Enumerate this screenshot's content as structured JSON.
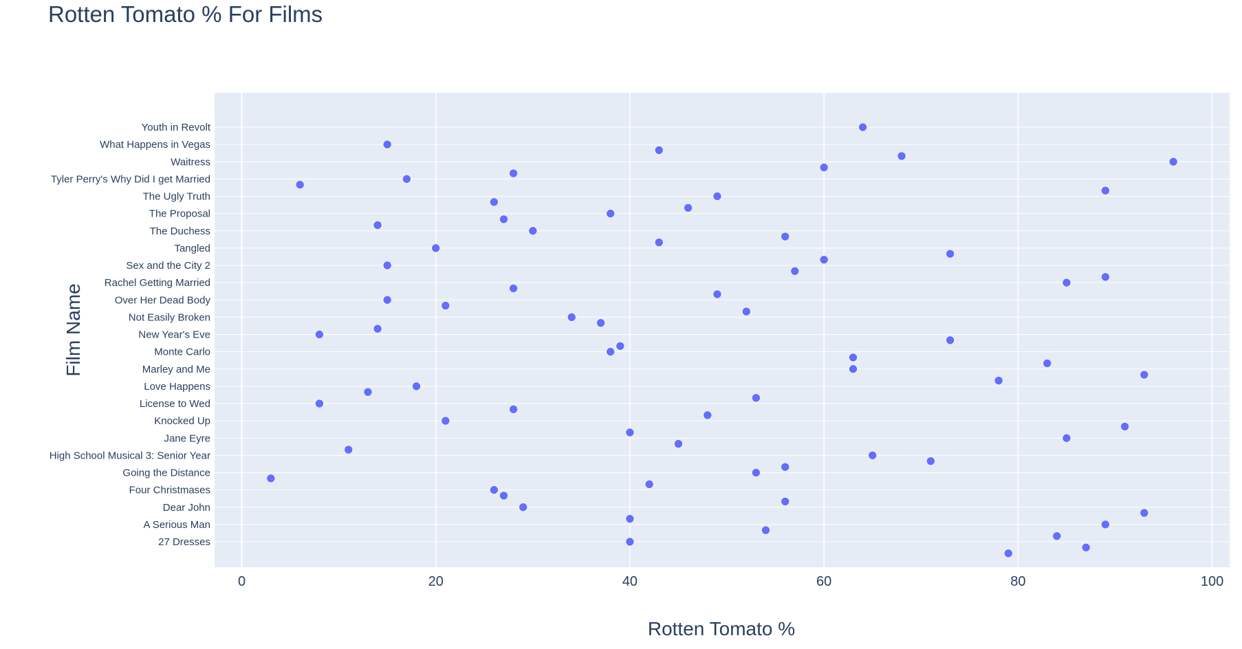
{
  "chart_data": {
    "type": "scatter",
    "title": "Rotten Tomato % For Films",
    "xlabel": "Rotten Tomato %",
    "ylabel": "Film Name",
    "xlim": [
      -2.8,
      101.8
    ],
    "xticks": [
      0,
      20,
      40,
      60,
      80,
      100
    ],
    "grid": true,
    "marker_color": "#636efa",
    "plot_bg": "#e5ecf6",
    "categories": [
      "27 Dresses",
      "A Serious Man",
      "Dear John",
      "Four Christmases",
      "Going the Distance",
      "High School Musical 3: Senior Year",
      "Jane Eyre",
      "Knocked Up",
      "License to Wed",
      "Love Happens",
      "Marley and Me",
      "Monte Carlo",
      "New Year's Eve",
      "Not Easily Broken",
      "Over Her Dead Body",
      "Rachel Getting Married",
      "Sex and the City 2",
      "Tangled",
      "The Duchess",
      "The Proposal",
      "The Ugly Truth",
      "Tyler Perry's Why Did I get Married",
      "Waitress",
      "What Happens in Vegas",
      "Youth in Revolt"
    ],
    "points": [
      {
        "y": "27 Dresses",
        "x": 40,
        "off": 0
      },
      {
        "y": "27 Dresses",
        "x": 87,
        "off": 0.33
      },
      {
        "y": "27 Dresses",
        "x": 79,
        "off": 0.67
      },
      {
        "y": "A Serious Man",
        "x": 89,
        "off": 0
      },
      {
        "y": "A Serious Man",
        "x": 54,
        "off": 0.33
      },
      {
        "y": "A Serious Man",
        "x": 84,
        "off": 0.67
      },
      {
        "y": "Dear John",
        "x": 29,
        "off": 0
      },
      {
        "y": "Dear John",
        "x": 93,
        "off": 0.33
      },
      {
        "y": "Dear John",
        "x": 40,
        "off": 0.67
      },
      {
        "y": "Four Christmases",
        "x": 26,
        "off": 0
      },
      {
        "y": "Four Christmases",
        "x": 27,
        "off": 0.33
      },
      {
        "y": "Four Christmases",
        "x": 56,
        "off": 0.67
      },
      {
        "y": "Going the Distance",
        "x": 53,
        "off": 0
      },
      {
        "y": "Going the Distance",
        "x": 3,
        "off": 0.33
      },
      {
        "y": "Going the Distance",
        "x": 42,
        "off": 0.67
      },
      {
        "y": "High School Musical 3: Senior Year",
        "x": 65,
        "off": 0
      },
      {
        "y": "High School Musical 3: Senior Year",
        "x": 71,
        "off": 0.33
      },
      {
        "y": "High School Musical 3: Senior Year",
        "x": 56,
        "off": 0.67
      },
      {
        "y": "Jane Eyre",
        "x": 85,
        "off": 0
      },
      {
        "y": "Jane Eyre",
        "x": 45,
        "off": 0.33
      },
      {
        "y": "Jane Eyre",
        "x": 11,
        "off": 0.67
      },
      {
        "y": "Knocked Up",
        "x": 21,
        "off": 0
      },
      {
        "y": "Knocked Up",
        "x": 91,
        "off": 0.33
      },
      {
        "y": "Knocked Up",
        "x": 40,
        "off": 0.67
      },
      {
        "y": "License to Wed",
        "x": 8,
        "off": 0
      },
      {
        "y": "License to Wed",
        "x": 28,
        "off": 0.33
      },
      {
        "y": "License to Wed",
        "x": 48,
        "off": 0.67
      },
      {
        "y": "Love Happens",
        "x": 18,
        "off": 0
      },
      {
        "y": "Love Happens",
        "x": 13,
        "off": 0.33
      },
      {
        "y": "Love Happens",
        "x": 53,
        "off": 0.67
      },
      {
        "y": "Marley and Me",
        "x": 63,
        "off": 0
      },
      {
        "y": "Marley and Me",
        "x": 93,
        "off": 0.33
      },
      {
        "y": "Marley and Me",
        "x": 78,
        "off": 0.67
      },
      {
        "y": "Monte Carlo",
        "x": 38,
        "off": 0
      },
      {
        "y": "Monte Carlo",
        "x": 63,
        "off": 0.33
      },
      {
        "y": "Monte Carlo",
        "x": 83,
        "off": 0.67
      },
      {
        "y": "New Year's Eve",
        "x": 8,
        "off": 0
      },
      {
        "y": "New Year's Eve",
        "x": 73,
        "off": 0.33
      },
      {
        "y": "New Year's Eve",
        "x": 39,
        "off": 0.67
      },
      {
        "y": "Not Easily Broken",
        "x": 34,
        "off": 0
      },
      {
        "y": "Not Easily Broken",
        "x": 37,
        "off": 0.33
      },
      {
        "y": "Not Easily Broken",
        "x": 14,
        "off": 0.67
      },
      {
        "y": "Over Her Dead Body",
        "x": 15,
        "off": 0
      },
      {
        "y": "Over Her Dead Body",
        "x": 21,
        "off": 0.33
      },
      {
        "y": "Over Her Dead Body",
        "x": 52,
        "off": 0.67
      },
      {
        "y": "Rachel Getting Married",
        "x": 85,
        "off": 0
      },
      {
        "y": "Rachel Getting Married",
        "x": 28,
        "off": 0.33
      },
      {
        "y": "Rachel Getting Married",
        "x": 49,
        "off": 0.67
      },
      {
        "y": "Sex and the City 2",
        "x": 15,
        "off": 0
      },
      {
        "y": "Sex and the City 2",
        "x": 57,
        "off": 0.33
      },
      {
        "y": "Sex and the City 2",
        "x": 89,
        "off": 0.67
      },
      {
        "y": "Tangled",
        "x": 20,
        "off": 0
      },
      {
        "y": "Tangled",
        "x": 73,
        "off": 0.33
      },
      {
        "y": "Tangled",
        "x": 60,
        "off": 0.67
      },
      {
        "y": "The Duchess",
        "x": 30,
        "off": 0
      },
      {
        "y": "The Duchess",
        "x": 56,
        "off": 0.33
      },
      {
        "y": "The Duchess",
        "x": 43,
        "off": 0.67
      },
      {
        "y": "The Proposal",
        "x": 38,
        "off": 0
      },
      {
        "y": "The Proposal",
        "x": 27,
        "off": 0.33
      },
      {
        "y": "The Proposal",
        "x": 14,
        "off": 0.67
      },
      {
        "y": "The Ugly Truth",
        "x": 49,
        "off": 0
      },
      {
        "y": "The Ugly Truth",
        "x": 26,
        "off": 0.33
      },
      {
        "y": "The Ugly Truth",
        "x": 46,
        "off": 0.67
      },
      {
        "y": "Tyler Perry's Why Did I get Married",
        "x": 17,
        "off": 0
      },
      {
        "y": "Tyler Perry's Why Did I get Married",
        "x": 6,
        "off": 0.33
      },
      {
        "y": "Tyler Perry's Why Did I get Married",
        "x": 89,
        "off": 0.67
      },
      {
        "y": "Waitress",
        "x": 96,
        "off": 0
      },
      {
        "y": "Waitress",
        "x": 60,
        "off": 0.33
      },
      {
        "y": "Waitress",
        "x": 28,
        "off": 0.67
      },
      {
        "y": "What Happens in Vegas",
        "x": 15,
        "off": 0
      },
      {
        "y": "What Happens in Vegas",
        "x": 43,
        "off": 0.33
      },
      {
        "y": "What Happens in Vegas",
        "x": 68,
        "off": 0.67
      },
      {
        "y": "Youth in Revolt",
        "x": 64,
        "off": 0
      }
    ]
  }
}
